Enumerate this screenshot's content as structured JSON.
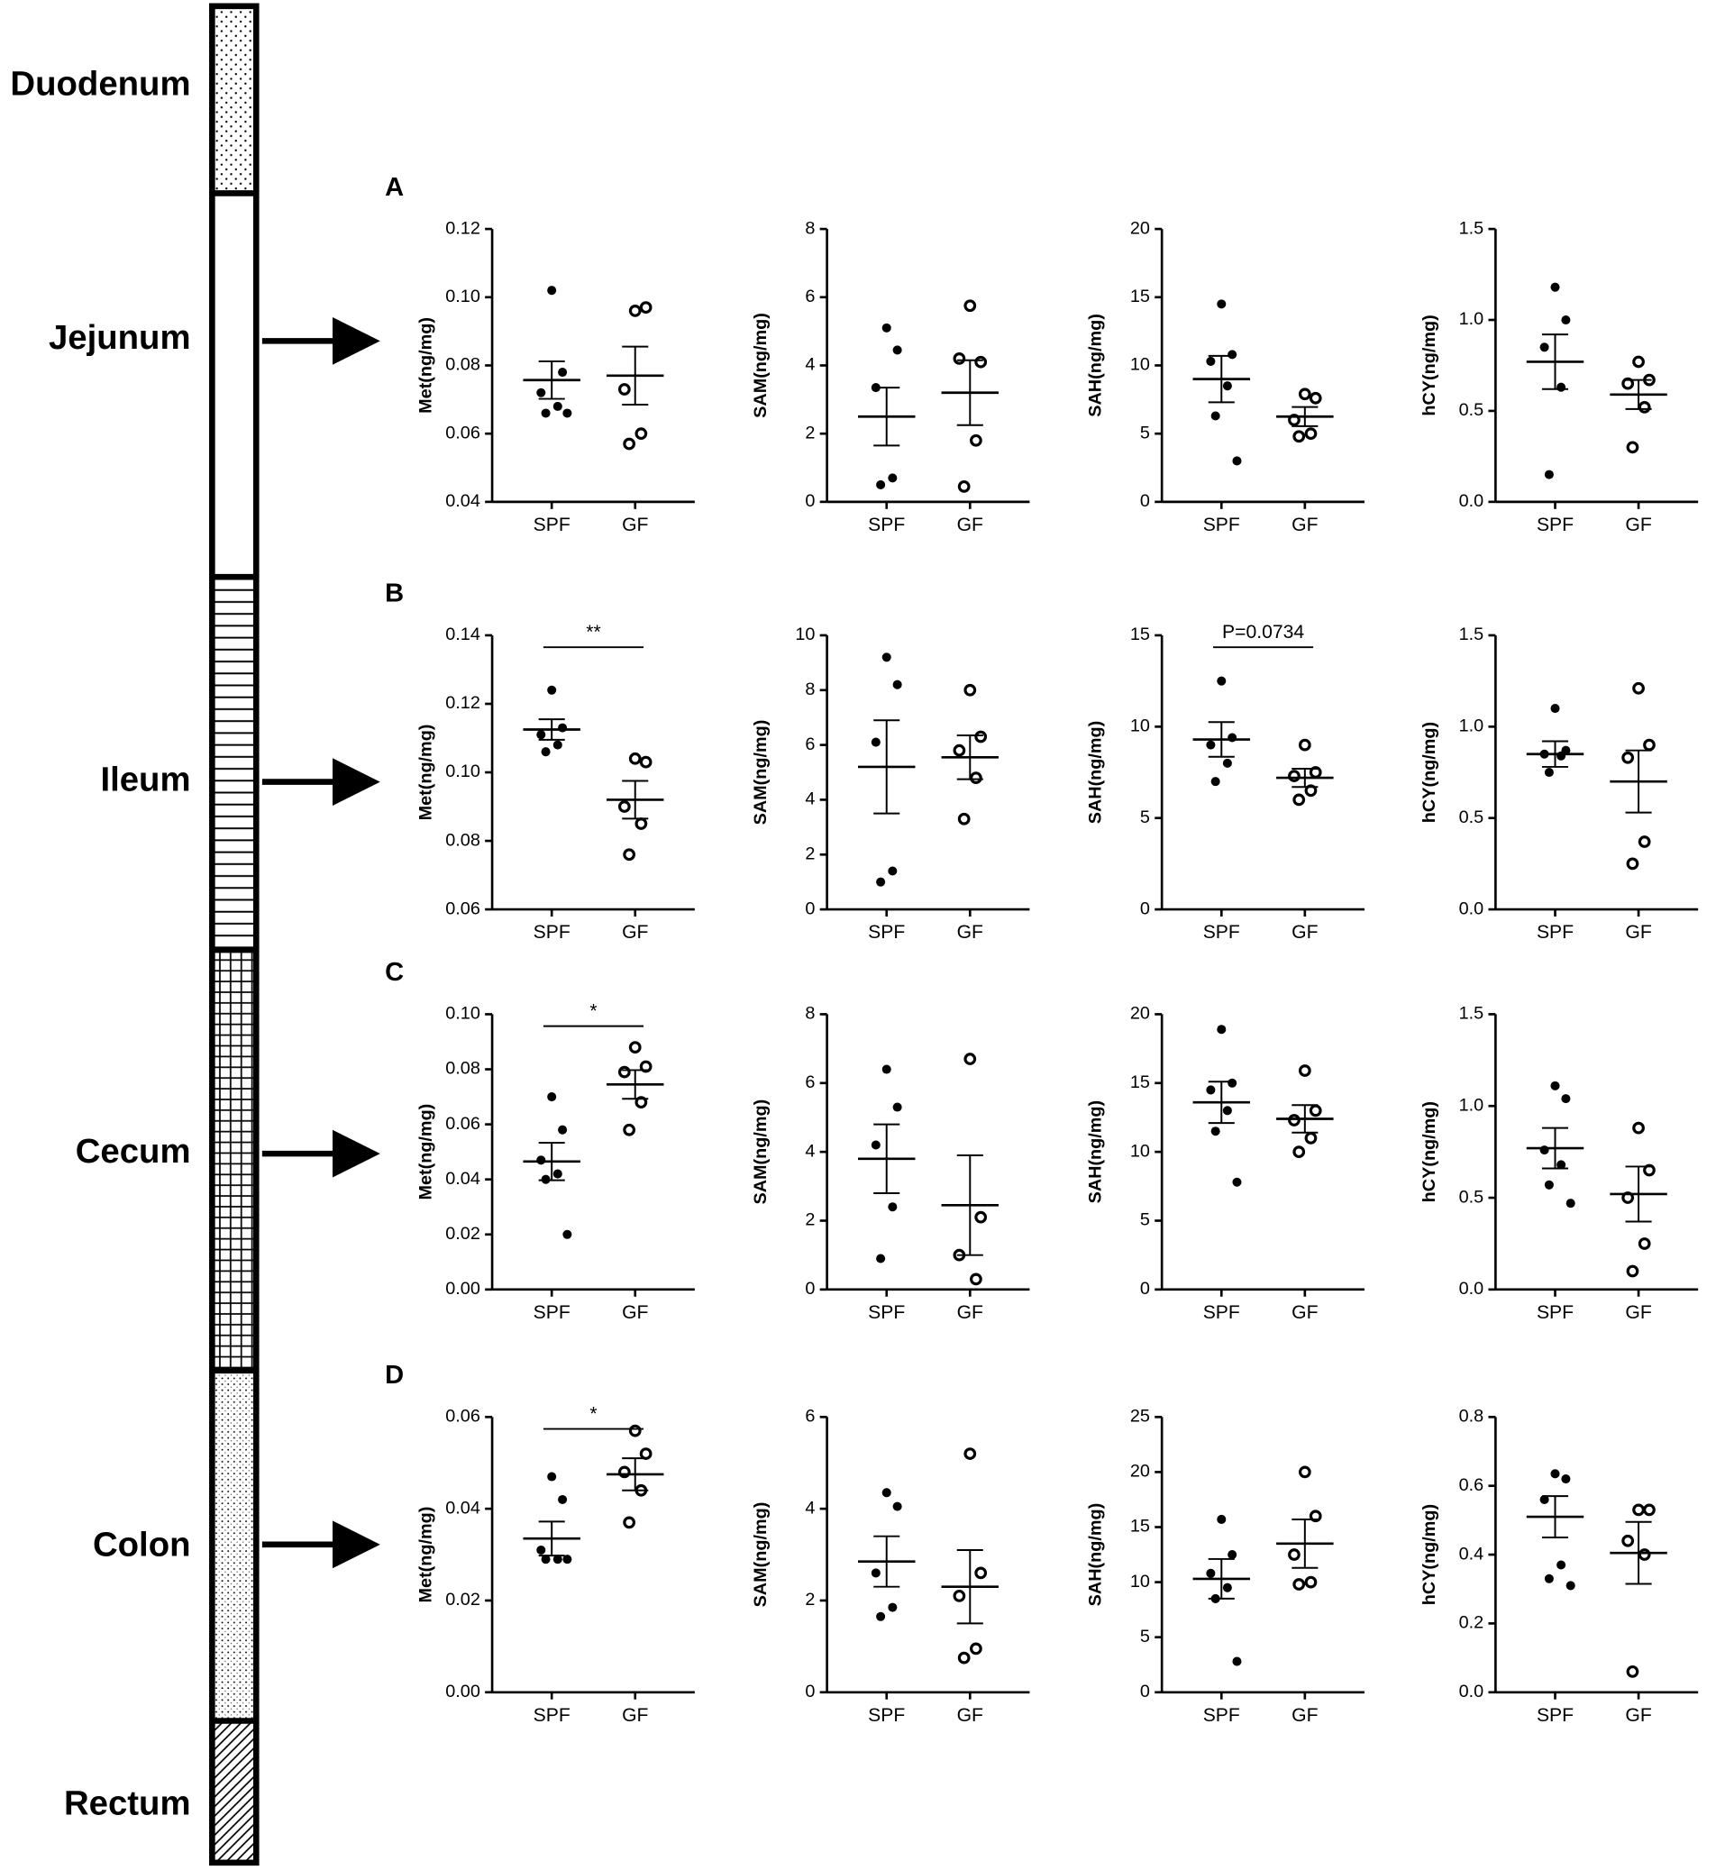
{
  "diagram": {
    "segments": [
      "Duodenum",
      "Jejunum",
      "Ileum",
      "Cecum",
      "Colon",
      "Rectum"
    ]
  },
  "chart_data": [
    {
      "type": "dotplot",
      "panel": "A",
      "ylabel": "Met(ng/mg)",
      "ylim": [
        0.04,
        0.12
      ],
      "yticks": [
        0.04,
        0.06,
        0.08,
        {
          "value": 0.1,
          "label": "0.10"
        },
        0.12
      ],
      "categories": [
        "SPF",
        "GF"
      ],
      "groups": [
        {
          "values": [
            0.102,
            0.078,
            0.072,
            0.068,
            0.066,
            0.066
          ],
          "mean": 0.0757,
          "sem": 0.0055
        },
        {
          "values": [
            0.096,
            0.097,
            0.073,
            0.06,
            0.057
          ],
          "mean": 0.077,
          "sem": 0.0085
        }
      ]
    },
    {
      "type": "dotplot",
      "ylabel": "SAM(ng/mg)",
      "ylim": [
        0,
        8
      ],
      "yticks": [
        0,
        2,
        4,
        6,
        8
      ],
      "categories": [
        "SPF",
        "GF"
      ],
      "groups": [
        {
          "values": [
            5.1,
            4.45,
            3.35,
            0.7,
            0.5
          ],
          "mean": 2.5,
          "sem": 0.85
        },
        {
          "values": [
            5.75,
            4.1,
            4.2,
            1.8,
            0.45
          ],
          "mean": 3.2,
          "sem": 0.95
        }
      ]
    },
    {
      "type": "dotplot",
      "ylabel": "SAH(ng/mg)",
      "ylim": [
        0,
        20
      ],
      "yticks": [
        0,
        5,
        10,
        15,
        20
      ],
      "categories": [
        "SPF",
        "GF"
      ],
      "groups": [
        {
          "values": [
            14.5,
            10.8,
            10.3,
            8.5,
            6.3,
            3.0
          ],
          "mean": 9.0,
          "sem": 1.7
        },
        {
          "values": [
            7.9,
            7.6,
            6.0,
            5.0,
            4.8
          ],
          "mean": 6.25,
          "sem": 0.7
        }
      ]
    },
    {
      "type": "dotplot",
      "ylabel": "hCY(ng/mg)",
      "ylim": [
        0,
        1.5
      ],
      "yticks": [
        {
          "value": 0,
          "label": "0.0"
        },
        0.5,
        {
          "value": 1,
          "label": "1.0"
        },
        1.5
      ],
      "categories": [
        "SPF",
        "GF"
      ],
      "groups": [
        {
          "values": [
            1.18,
            1.0,
            0.85,
            0.63,
            0.15
          ],
          "mean": 0.77,
          "sem": 0.15
        },
        {
          "values": [
            0.77,
            0.67,
            0.65,
            0.52,
            0.3
          ],
          "mean": 0.59,
          "sem": 0.08
        }
      ]
    },
    {
      "type": "dotplot",
      "panel": "B",
      "ylabel": "Met(ng/mg)",
      "ylim": [
        0.06,
        0.14
      ],
      "yticks": [
        0.06,
        0.08,
        {
          "value": 0.1,
          "label": "0.10"
        },
        0.12,
        0.14
      ],
      "categories": [
        "SPF",
        "GF"
      ],
      "annotation": "**",
      "groups": [
        {
          "values": [
            0.124,
            0.113,
            0.111,
            0.108,
            0.106
          ],
          "mean": 0.1125,
          "sem": 0.003
        },
        {
          "values": [
            0.104,
            0.103,
            0.09,
            0.085,
            0.076
          ],
          "mean": 0.092,
          "sem": 0.0055
        }
      ]
    },
    {
      "type": "dotplot",
      "ylabel": "SAM(ng/mg)",
      "ylim": [
        0,
        10
      ],
      "yticks": [
        0,
        2,
        4,
        6,
        8,
        10
      ],
      "categories": [
        "SPF",
        "GF"
      ],
      "groups": [
        {
          "values": [
            9.2,
            8.2,
            6.1,
            1.4,
            1.0
          ],
          "mean": 5.2,
          "sem": 1.7
        },
        {
          "values": [
            8.0,
            6.3,
            5.8,
            4.8,
            3.3
          ],
          "mean": 5.55,
          "sem": 0.8
        }
      ]
    },
    {
      "type": "dotplot",
      "ylabel": "SAH(ng/mg)",
      "ylim": [
        0,
        15
      ],
      "yticks": [
        0,
        5,
        10,
        15
      ],
      "categories": [
        "SPF",
        "GF"
      ],
      "annotation": "P=0.0734",
      "groups": [
        {
          "values": [
            12.5,
            9.4,
            9.0,
            8.0,
            7.0
          ],
          "mean": 9.3,
          "sem": 0.95
        },
        {
          "values": [
            9.0,
            7.5,
            7.3,
            6.5,
            6.0
          ],
          "mean": 7.2,
          "sem": 0.5
        }
      ]
    },
    {
      "type": "dotplot",
      "ylabel": "hCY(ng/mg)",
      "ylim": [
        0,
        1.5
      ],
      "yticks": [
        {
          "value": 0,
          "label": "0.0"
        },
        0.5,
        {
          "value": 1,
          "label": "1.0"
        },
        1.5
      ],
      "categories": [
        "SPF",
        "GF"
      ],
      "groups": [
        {
          "values": [
            1.1,
            0.87,
            0.85,
            0.84,
            0.75
          ],
          "mean": 0.85,
          "sem": 0.07
        },
        {
          "values": [
            1.21,
            0.9,
            0.83,
            0.37,
            0.25
          ],
          "mean": 0.7,
          "sem": 0.17
        }
      ]
    },
    {
      "type": "dotplot",
      "panel": "C",
      "ylabel": "Met(ng/mg)",
      "ylim": [
        0,
        0.1
      ],
      "yticks": [
        {
          "value": 0,
          "label": "0.00"
        },
        0.02,
        0.04,
        0.06,
        0.08,
        {
          "value": 0.1,
          "label": "0.10"
        }
      ],
      "categories": [
        "SPF",
        "GF"
      ],
      "annotation": "*",
      "groups": [
        {
          "values": [
            0.07,
            0.058,
            0.047,
            0.042,
            0.04,
            0.02
          ],
          "mean": 0.0465,
          "sem": 0.0068
        },
        {
          "values": [
            0.088,
            0.081,
            0.079,
            0.068,
            0.058
          ],
          "mean": 0.0745,
          "sem": 0.0052
        }
      ]
    },
    {
      "type": "dotplot",
      "ylabel": "SAM(ng/mg)",
      "ylim": [
        0,
        8
      ],
      "yticks": [
        0,
        2,
        4,
        6,
        8
      ],
      "categories": [
        "SPF",
        "GF"
      ],
      "groups": [
        {
          "values": [
            6.4,
            5.3,
            4.2,
            2.4,
            0.9
          ],
          "mean": 3.8,
          "sem": 1.0
        },
        {
          "values": [
            6.7,
            2.1,
            1.0,
            0.3
          ],
          "mean": 2.45,
          "sem": 1.45
        }
      ]
    },
    {
      "type": "dotplot",
      "ylabel": "SAH(ng/mg)",
      "ylim": [
        0,
        20
      ],
      "yticks": [
        0,
        5,
        10,
        15,
        20
      ],
      "categories": [
        "SPF",
        "GF"
      ],
      "groups": [
        {
          "values": [
            18.9,
            15.0,
            14.5,
            13.0,
            11.5,
            7.8
          ],
          "mean": 13.6,
          "sem": 1.5
        },
        {
          "values": [
            15.9,
            13.0,
            12.3,
            11.0,
            10.0
          ],
          "mean": 12.4,
          "sem": 1.0
        }
      ]
    },
    {
      "type": "dotplot",
      "ylabel": "hCY(ng/mg)",
      "ylim": [
        0,
        1.5
      ],
      "yticks": [
        {
          "value": 0,
          "label": "0.0"
        },
        0.5,
        {
          "value": 1,
          "label": "1.0"
        },
        1.5
      ],
      "categories": [
        "SPF",
        "GF"
      ],
      "groups": [
        {
          "values": [
            1.11,
            1.04,
            0.76,
            0.68,
            0.57,
            0.47
          ],
          "mean": 0.77,
          "sem": 0.11
        },
        {
          "values": [
            0.88,
            0.65,
            0.5,
            0.25,
            0.1
          ],
          "mean": 0.52,
          "sem": 0.15
        }
      ]
    },
    {
      "type": "dotplot",
      "panel": "D",
      "ylabel": "Met(ng/mg)",
      "ylim": [
        0,
        0.06
      ],
      "yticks": [
        {
          "value": 0,
          "label": "0.00"
        },
        0.02,
        0.04,
        0.06
      ],
      "categories": [
        "SPF",
        "GF"
      ],
      "annotation": "*",
      "groups": [
        {
          "values": [
            0.047,
            0.042,
            0.031,
            0.029,
            0.029,
            0.029
          ],
          "mean": 0.0335,
          "sem": 0.0037
        },
        {
          "values": [
            0.057,
            0.052,
            0.048,
            0.044,
            0.037
          ],
          "mean": 0.0475,
          "sem": 0.0035
        }
      ]
    },
    {
      "type": "dotplot",
      "ylabel": "SAM(ng/mg)",
      "ylim": [
        0,
        6
      ],
      "yticks": [
        0,
        2,
        4,
        6
      ],
      "categories": [
        "SPF",
        "GF"
      ],
      "groups": [
        {
          "values": [
            4.35,
            4.05,
            2.6,
            1.85,
            1.65
          ],
          "mean": 2.85,
          "sem": 0.55
        },
        {
          "values": [
            5.2,
            2.6,
            2.1,
            0.95,
            0.75
          ],
          "mean": 2.3,
          "sem": 0.8
        }
      ]
    },
    {
      "type": "dotplot",
      "ylabel": "SAH(ng/mg)",
      "ylim": [
        0,
        25
      ],
      "yticks": [
        0,
        5,
        10,
        15,
        20,
        25
      ],
      "categories": [
        "SPF",
        "GF"
      ],
      "groups": [
        {
          "values": [
            15.7,
            12.5,
            10.8,
            9.5,
            8.5,
            2.8
          ],
          "mean": 10.3,
          "sem": 1.8
        },
        {
          "values": [
            20.0,
            16.0,
            12.5,
            10.0,
            9.8
          ],
          "mean": 13.5,
          "sem": 2.2
        }
      ]
    },
    {
      "type": "dotplot",
      "ylabel": "hCY(ng/mg)",
      "ylim": [
        0,
        0.8
      ],
      "yticks": [
        {
          "value": 0,
          "label": "0.0"
        },
        0.2,
        0.4,
        0.6,
        0.8
      ],
      "categories": [
        "SPF",
        "GF"
      ],
      "groups": [
        {
          "values": [
            0.635,
            0.62,
            0.56,
            0.37,
            0.33,
            0.31
          ],
          "mean": 0.51,
          "sem": 0.06
        },
        {
          "values": [
            0.53,
            0.53,
            0.44,
            0.4,
            0.06
          ],
          "mean": 0.405,
          "sem": 0.09
        }
      ]
    }
  ]
}
